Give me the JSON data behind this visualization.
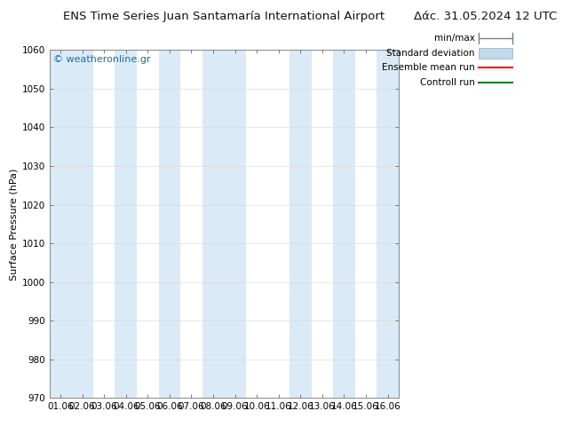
{
  "title_left": "ENS Time Series Juan Santamaría International Airport",
  "title_right": "Δάϲ. 31.05.2024 12 UTC",
  "ylabel": "Surface Pressure (hPa)",
  "ylim": [
    970,
    1060
  ],
  "yticks": [
    970,
    980,
    990,
    1000,
    1010,
    1020,
    1030,
    1040,
    1050,
    1060
  ],
  "xlabels": [
    "01.06",
    "02.06",
    "03.06",
    "04.06",
    "05.06",
    "06.06",
    "07.06",
    "08.06",
    "09.06",
    "10.06",
    "11.06",
    "12.06",
    "13.06",
    "14.06",
    "15.06",
    "16.06"
  ],
  "watermark": "© weatheronline.gr",
  "shaded_bands": [
    0,
    1,
    3,
    5,
    7,
    8,
    11,
    13,
    15
  ],
  "band_color": "#daeaf6",
  "background_color": "#ffffff",
  "title_fontsize": 9.5,
  "tick_fontsize": 7.5,
  "ylabel_fontsize": 8,
  "watermark_color": "#1a6ea8",
  "ensemble_mean_color": "#ff0000",
  "control_run_color": "#008000",
  "minmax_line_color": "#708090",
  "std_fill_color": "#c5d8e8",
  "std_edge_color": "#a0b8cc"
}
